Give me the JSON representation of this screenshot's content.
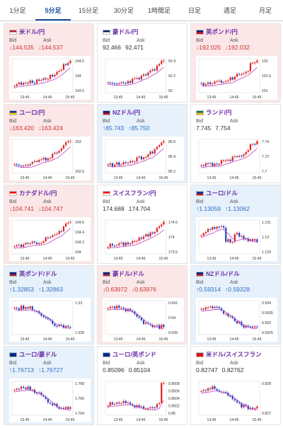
{
  "tabs": [
    "1分足",
    "5分足",
    "15分足",
    "30分足",
    "1時間足",
    "日足",
    "週足",
    "月足"
  ],
  "active_tab": 1,
  "bid_label": "Bid",
  "ask_label": "Ask",
  "x_ticks": [
    "13:45",
    "14:45",
    "15:45"
  ],
  "cards": [
    {
      "name": "米ドル/円",
      "dir": "down",
      "bid": "144.535",
      "ask": "144.537",
      "y_labels": [
        "144.5",
        "144",
        "143.5"
      ],
      "trend": "up",
      "flag": [
        "#b22234",
        "#ffffff"
      ]
    },
    {
      "name": "豪ドル/円",
      "dir": "flat",
      "bid": "92.466",
      "ask": "92.471",
      "y_labels": [
        "92.4",
        "92.2",
        "92"
      ],
      "trend": "up",
      "flag": [
        "#00247d",
        "#ffffff"
      ]
    },
    {
      "name": "英ポンド/円",
      "dir": "down",
      "bid": "192.025",
      "ask": "192.032",
      "y_labels": [
        "192",
        "191.5",
        "191"
      ],
      "trend": "up",
      "flag": [
        "#00247d",
        "#cf142b"
      ]
    },
    {
      "name": "ユーロ/円",
      "dir": "down",
      "bid": "163.420",
      "ask": "163.424",
      "y_labels": [
        "163",
        "162.5"
      ],
      "trend": "up",
      "flag": [
        "#003399",
        "#ffcc00"
      ]
    },
    {
      "name": "NZドル/円",
      "dir": "up",
      "bid": "85.743",
      "ask": "85.750",
      "y_labels": [
        "85.6",
        "85.4",
        "85.2"
      ],
      "trend": "up",
      "flag": [
        "#00247d",
        "#cc142b"
      ]
    },
    {
      "name": "ランド/円",
      "dir": "flat",
      "bid": "7.745",
      "ask": "7.754",
      "y_labels": [
        "7.74",
        "7.72",
        "7.7"
      ],
      "trend": "up",
      "flag": [
        "#007a4d",
        "#ffb612"
      ]
    },
    {
      "name": "カナダドル/円",
      "dir": "down",
      "bid": "104.741",
      "ask": "104.747",
      "y_labels": [
        "104.6",
        "104.4",
        "104.2",
        "104"
      ],
      "trend": "up",
      "flag": [
        "#ff0000",
        "#ffffff"
      ]
    },
    {
      "name": "スイスフラン/円",
      "dir": "flat",
      "bid": "174.688",
      "ask": "174.704",
      "y_labels": [
        "174.5",
        "174",
        "173.5"
      ],
      "trend": "up",
      "flag": [
        "#ff0000",
        "#ffffff"
      ]
    },
    {
      "name": "ユーロ/ドル",
      "dir": "up",
      "bid": "1.13059",
      "ask": "1.13062",
      "y_labels": [
        "1.131",
        "1.13",
        "1.129"
      ],
      "trend": "dip",
      "flag": [
        "#003399",
        "#b22234"
      ]
    },
    {
      "name": "英ポンド/ドル",
      "dir": "up",
      "bid": "1.32853",
      "ask": "1.32863",
      "y_labels": [
        "1.33",
        "1.328"
      ],
      "trend": "down",
      "flag": [
        "#00247d",
        "#b22234"
      ]
    },
    {
      "name": "豪ドル/ドル",
      "dir": "down",
      "bid": "0.63972",
      "ask": "0.63976",
      "y_labels": [
        "0.641",
        "0.64",
        "0.639"
      ],
      "trend": "down",
      "flag": [
        "#00247d",
        "#b22234"
      ]
    },
    {
      "name": "NZドル/ドル",
      "dir": "up",
      "bid": "0.59314",
      "ask": "0.59328",
      "y_labels": [
        "0.594",
        "0.5935",
        "0.593",
        "0.5925"
      ],
      "trend": "down",
      "flag": [
        "#00247d",
        "#b22234"
      ]
    },
    {
      "name": "ユーロ/豪ドル",
      "dir": "up",
      "bid": "1.76713",
      "ask": "1.76727",
      "y_labels": [
        "1.768",
        "1.766",
        "1.764"
      ],
      "trend": "down",
      "flag": [
        "#003399",
        "#00247d"
      ]
    },
    {
      "name": "ユーロ/英ポンド",
      "dir": "flat",
      "bid": "0.85096",
      "ask": "0.85104",
      "y_labels": [
        "0.8508",
        "0.8506",
        "0.8504",
        "0.8502",
        "0.85"
      ],
      "trend": "spike",
      "flag": [
        "#003399",
        "#00247d"
      ]
    },
    {
      "name": "米ドル/スイスフラン",
      "dir": "flat",
      "bid": "0.82747",
      "ask": "0.82762",
      "y_labels": [
        "0.828",
        "0.827"
      ],
      "trend": "down",
      "flag": [
        "#b22234",
        "#ff0000"
      ]
    }
  ]
}
